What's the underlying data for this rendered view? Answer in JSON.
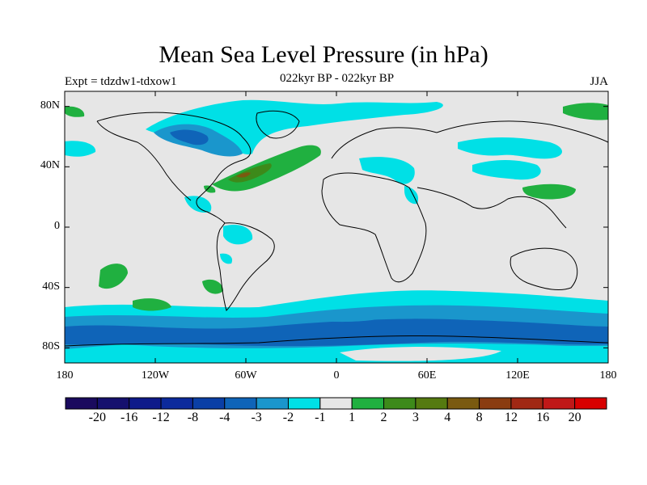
{
  "title": "Mean Sea Level Pressure (in hPa)",
  "experiment": "Expt = tdzdw1-tdxow1",
  "subtitle": "022kyr BP - 022kyr BP",
  "season": "JJA",
  "axes": {
    "y_ticks": [
      {
        "value": 80,
        "label": "80N"
      },
      {
        "value": 40,
        "label": "40N"
      },
      {
        "value": 0,
        "label": "0"
      },
      {
        "value": -40,
        "label": "40S"
      },
      {
        "value": -80,
        "label": "80S"
      }
    ],
    "x_ticks": [
      {
        "value": -180,
        "label": "180"
      },
      {
        "value": -120,
        "label": "120W"
      },
      {
        "value": -60,
        "label": "60W"
      },
      {
        "value": 0,
        "label": "0"
      },
      {
        "value": 60,
        "label": "60E"
      },
      {
        "value": 120,
        "label": "120E"
      },
      {
        "value": 180,
        "label": "180"
      }
    ],
    "lon_range": [
      -180,
      180
    ],
    "lat_range": [
      -90,
      90
    ]
  },
  "colorbar": {
    "colors": [
      "#1a0a5e",
      "#15106e",
      "#0f1a8a",
      "#0c2a9c",
      "#0a3fa6",
      "#0f64b8",
      "#1a96cc",
      "#00e0e6",
      "#e6e6e6",
      "#20b040",
      "#3d8a1a",
      "#557a10",
      "#7a5a10",
      "#8a3c10",
      "#a02814",
      "#c01818",
      "#d80000"
    ],
    "labels": [
      "-20",
      "-16",
      "-12",
      "-8",
      "-4",
      "-3",
      "-2",
      "-1",
      "1",
      "2",
      "3",
      "4",
      "8",
      "12",
      "16",
      "20"
    ]
  },
  "map_colors": {
    "land_line": "#000000",
    "background": "#e6e6e6",
    "cyan": "#00e0e6",
    "mid_blue": "#1a96cc",
    "dark_blue": "#0f64b8",
    "green": "#20b040",
    "dark_green": "#3d8a1a",
    "brown": "#7a5a10"
  }
}
